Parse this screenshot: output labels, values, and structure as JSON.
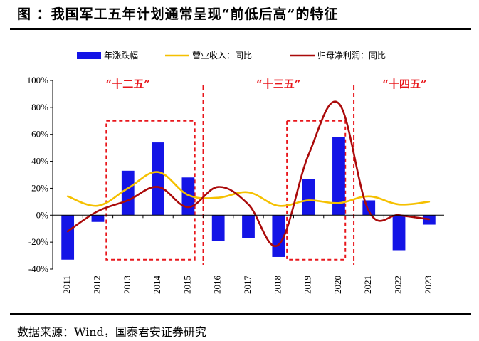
{
  "title": "图  ：我国军工五年计划通常呈现“前低后高”的特征",
  "source": "数据来源：Wind，国泰君安证券研究",
  "chart_data": {
    "type": "bar+line",
    "title": "我国军工五年计划通常呈现“前低后高”的特征",
    "categories": [
      "2011",
      "2012",
      "2013",
      "2014",
      "2015",
      "2016",
      "2017",
      "2018",
      "2019",
      "2020",
      "2021",
      "2022",
      "2023"
    ],
    "ylim": [
      -40,
      100
    ],
    "yticks": [
      -40,
      -20,
      0,
      20,
      40,
      60,
      80,
      100
    ],
    "ytick_labels": [
      "-40%",
      "-20%",
      "0%",
      "20%",
      "40%",
      "60%",
      "80%",
      "100%"
    ],
    "grid": false,
    "legend_position": "top",
    "series": [
      {
        "name": "年涨跌幅",
        "kind": "bar",
        "color": "#1414e6",
        "values": [
          -33,
          -5,
          33,
          54,
          28,
          -19,
          -17,
          -31,
          27,
          58,
          11,
          -26,
          -7
        ]
      },
      {
        "name": "营业收入：同比",
        "kind": "line",
        "color": "#f5c000",
        "values": [
          14,
          7,
          20,
          32,
          15,
          13,
          17,
          7,
          11,
          9,
          14,
          8,
          10
        ]
      },
      {
        "name": "归母净利润：同比",
        "kind": "line",
        "color": "#aa0a0a",
        "values": [
          -12,
          3,
          11,
          21,
          6,
          21,
          8,
          -22,
          45,
          83,
          3,
          0,
          -3
        ]
      }
    ],
    "periods": [
      {
        "label": "“十二五”",
        "from": "2011",
        "to": "2015",
        "highlight": [
          "2013",
          "2015"
        ]
      },
      {
        "label": "“十三五”",
        "from": "2016",
        "to": "2020",
        "highlight": [
          "2019",
          "2020"
        ]
      },
      {
        "label": "“十四五”",
        "from": "2021",
        "to": "2023"
      }
    ],
    "colors": {
      "divider": "#e8161b",
      "axis": "#000000"
    }
  }
}
